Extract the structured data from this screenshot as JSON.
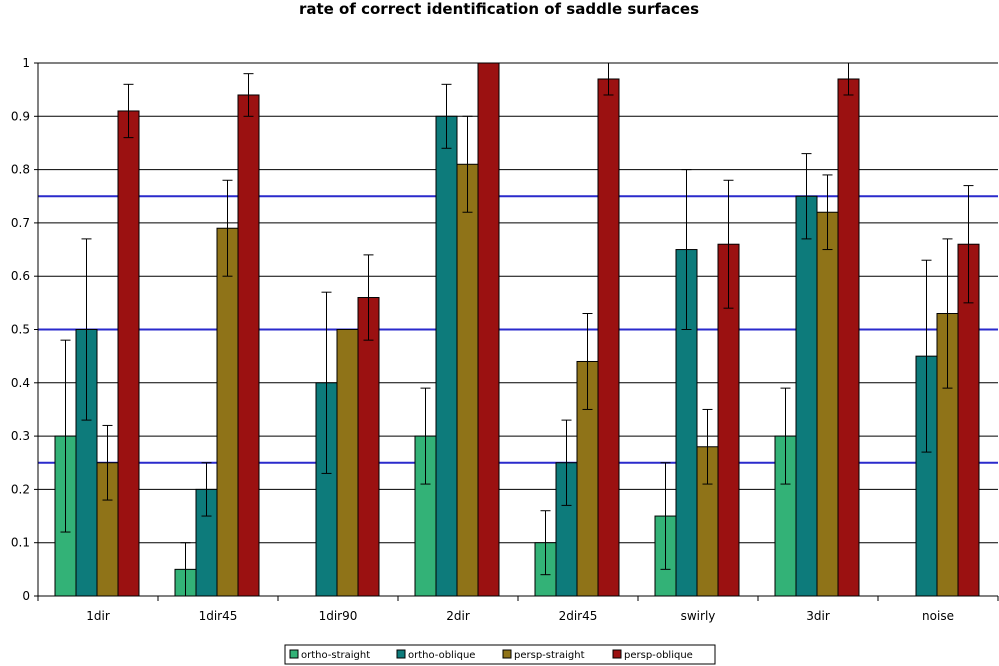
{
  "chart_data": {
    "type": "bar",
    "title": "rate of correct identification of saddle surfaces",
    "xlabel": "",
    "ylabel": "",
    "ylim": [
      0,
      1
    ],
    "yticks": [
      0,
      0.1,
      0.2,
      0.3,
      0.4,
      0.5,
      0.6,
      0.7,
      0.8,
      0.9,
      1
    ],
    "ytick_labels": [
      "0",
      "0.1",
      "0.2",
      "0.3",
      "0.4",
      "0.5",
      "0.6",
      "0.7",
      "0.8",
      "0.9",
      "1"
    ],
    "grid": true,
    "legend_position": "bottom-center",
    "categories": [
      "1dir",
      "1dir45",
      "1dir90",
      "2dir",
      "2dir45",
      "swirly",
      "3dir",
      "noise"
    ],
    "series": [
      {
        "name": "ortho-straight",
        "color": "#33b277",
        "values": [
          0.3,
          0.05,
          0,
          0.3,
          0.1,
          0.15,
          0.3,
          0
        ],
        "err_low": [
          0.18,
          0.05,
          0,
          0.09,
          0.06,
          0.1,
          0.09,
          0
        ],
        "err_high": [
          0.18,
          0.05,
          0,
          0.09,
          0.06,
          0.1,
          0.09,
          0
        ]
      },
      {
        "name": "ortho-oblique",
        "color": "#0d7b7b",
        "values": [
          0.5,
          0.2,
          0.4,
          0.9,
          0.25,
          0.65,
          0.75,
          0.45
        ],
        "err_low": [
          0.17,
          0.05,
          0.17,
          0.06,
          0.08,
          0.15,
          0.08,
          0.18
        ],
        "err_high": [
          0.17,
          0.05,
          0.17,
          0.06,
          0.08,
          0.15,
          0.08,
          0.18
        ]
      },
      {
        "name": "persp-straight",
        "color": "#8f7318",
        "values": [
          0.25,
          0.69,
          0.5,
          0.81,
          0.44,
          0.28,
          0.72,
          0.53
        ],
        "err_low": [
          0.07,
          0.09,
          0,
          0.09,
          0.09,
          0.07,
          0.07,
          0.14
        ],
        "err_high": [
          0.07,
          0.09,
          0,
          0.09,
          0.09,
          0.07,
          0.07,
          0.14
        ]
      },
      {
        "name": "persp-oblique",
        "color": "#9b1111",
        "values": [
          0.91,
          0.94,
          0.56,
          1.0,
          0.97,
          0.66,
          0.97,
          0.66
        ],
        "err_low": [
          0.05,
          0.04,
          0.08,
          0,
          0.03,
          0.12,
          0.03,
          0.11
        ],
        "err_high": [
          0.05,
          0.04,
          0.08,
          0,
          0.03,
          0.12,
          0.03,
          0.11
        ]
      }
    ],
    "reference_lines": [
      {
        "y": 0.25,
        "color": "#2a2acc"
      },
      {
        "y": 0.5,
        "color": "#2a2acc"
      },
      {
        "y": 0.75,
        "color": "#2a2acc"
      }
    ]
  }
}
